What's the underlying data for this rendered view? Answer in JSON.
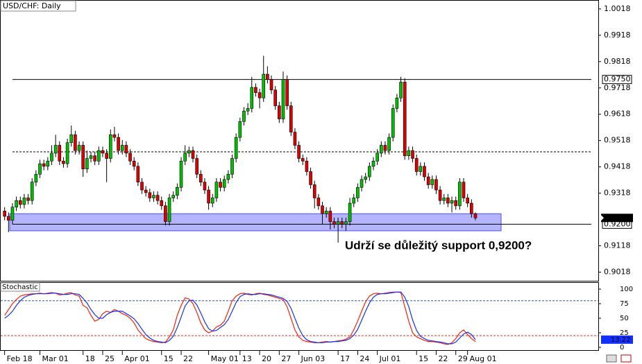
{
  "chart_data": [
    {
      "type": "candlestick",
      "title": "USD/CHF: Daily",
      "annotation": "Udrží se důležitý support 0,9200?",
      "up_color": "#00c000",
      "down_color": "#e00000",
      "ylim": [
        0.8985,
        1.0052
      ],
      "yticks": [
        1.0018,
        0.9918,
        0.9818,
        0.9718,
        0.9618,
        0.9518,
        0.9418,
        0.9318,
        0.9118,
        0.9018
      ],
      "xlim": [
        -1,
        151
      ],
      "xticks": [
        {
          "value": 0,
          "label": "Feb 18"
        },
        {
          "value": 9,
          "label": "Mar 01"
        },
        {
          "value": 20,
          "label": "18"
        },
        {
          "value": 25,
          "label": "25"
        },
        {
          "value": 30,
          "label": "Apr 01"
        },
        {
          "value": 40,
          "label": "15"
        },
        {
          "value": 45,
          "label": "22"
        },
        {
          "value": 52,
          "label": "May 01"
        },
        {
          "value": 60,
          "label": "13"
        },
        {
          "value": 65,
          "label": "20"
        },
        {
          "value": 70,
          "label": "27"
        },
        {
          "value": 75,
          "label": "Jun 03"
        },
        {
          "value": 85,
          "label": "17"
        },
        {
          "value": 90,
          "label": "24"
        },
        {
          "value": 95,
          "label": "Jul 01"
        },
        {
          "value": 105,
          "label": "15"
        },
        {
          "value": 110,
          "label": "22"
        },
        {
          "value": 115,
          "label": "29"
        },
        {
          "value": 118,
          "label": "Aug 01"
        }
      ],
      "levels": [
        {
          "value": 0.975,
          "label": "0.9750",
          "dashed": false
        },
        {
          "value": 0.9475,
          "dashed": true
        },
        {
          "value": 0.92,
          "label": "0.9200",
          "dashed": false
        }
      ],
      "support_zone": [
        0.9175,
        0.924
      ],
      "zone_color": "#b4b4ff",
      "open": [
        0.925,
        0.923,
        0.9215,
        0.9265,
        0.929,
        0.9275,
        0.93,
        0.929,
        0.936,
        0.939,
        0.943,
        0.942,
        0.944,
        0.947,
        0.95,
        0.944,
        0.943,
        0.951,
        0.954,
        0.948,
        0.95,
        0.941,
        0.945,
        0.946,
        0.944,
        0.948,
        0.947,
        0.945,
        0.954,
        0.953,
        0.948,
        0.95,
        0.947,
        0.944,
        0.942,
        0.936,
        0.933,
        0.932,
        0.93,
        0.931,
        0.929,
        0.927,
        0.921,
        0.93,
        0.931,
        0.934,
        0.944,
        0.947,
        0.948,
        0.945,
        0.939,
        0.936,
        0.933,
        0.928,
        0.93,
        0.936,
        0.934,
        0.937,
        0.939,
        0.945,
        0.953,
        0.959,
        0.963,
        0.964,
        0.972,
        0.97,
        0.968,
        0.977,
        0.975,
        0.971,
        0.965,
        0.96,
        0.975,
        0.965,
        0.955,
        0.95,
        0.945,
        0.944,
        0.94,
        0.935,
        0.93,
        0.927,
        0.924,
        0.925,
        0.921,
        0.92,
        0.921,
        0.92,
        0.921,
        0.928,
        0.93,
        0.934,
        0.937,
        0.938,
        0.942,
        0.944,
        0.947,
        0.95,
        0.948,
        0.953,
        0.964,
        0.968,
        0.974,
        0.946,
        0.948,
        0.945,
        0.94,
        0.942,
        0.938,
        0.935,
        0.937,
        0.933,
        0.929,
        0.93,
        0.928,
        0.929,
        0.927,
        0.936,
        0.93,
        0.928,
        0.924
      ],
      "high": [
        0.9265,
        0.9245,
        0.928,
        0.9305,
        0.9305,
        0.9315,
        0.9315,
        0.9375,
        0.9405,
        0.9445,
        0.9445,
        0.9455,
        0.95,
        0.954,
        0.9515,
        0.9455,
        0.9525,
        0.9575,
        0.9555,
        0.9515,
        0.9515,
        0.948,
        0.9475,
        0.9475,
        0.9495,
        0.9495,
        0.9485,
        0.956,
        0.957,
        0.9545,
        0.952,
        0.9515,
        0.9485,
        0.9455,
        0.9435,
        0.9375,
        0.9345,
        0.9335,
        0.9325,
        0.9325,
        0.9305,
        0.9285,
        0.9315,
        0.9325,
        0.9355,
        0.9455,
        0.95,
        0.9495,
        0.9495,
        0.9465,
        0.9405,
        0.9375,
        0.9345,
        0.9315,
        0.9375,
        0.9375,
        0.9385,
        0.9405,
        0.9465,
        0.9545,
        0.9605,
        0.9645,
        0.966,
        0.976,
        0.9735,
        0.9715,
        0.984,
        0.98,
        0.9765,
        0.9725,
        0.9665,
        0.978,
        0.9765,
        0.9665,
        0.9565,
        0.9515,
        0.9465,
        0.9455,
        0.9415,
        0.9365,
        0.9315,
        0.9285,
        0.9265,
        0.9265,
        0.9225,
        0.9225,
        0.9225,
        0.9225,
        0.93,
        0.9315,
        0.9355,
        0.9385,
        0.9395,
        0.9435,
        0.9455,
        0.9485,
        0.9515,
        0.9515,
        0.9545,
        0.9655,
        0.9695,
        0.976,
        0.9755,
        0.9495,
        0.9495,
        0.9465,
        0.9435,
        0.9435,
        0.9395,
        0.9385,
        0.9385,
        0.9345,
        0.9315,
        0.9315,
        0.9305,
        0.9305,
        0.9375,
        0.9375,
        0.9315,
        0.9295,
        0.9245
      ],
      "low": [
        0.9215,
        0.917,
        0.92,
        0.925,
        0.926,
        0.926,
        0.9275,
        0.9275,
        0.9345,
        0.9375,
        0.9405,
        0.9405,
        0.9425,
        0.9455,
        0.9425,
        0.9415,
        0.9415,
        0.9495,
        0.9465,
        0.9465,
        0.938,
        0.9395,
        0.9435,
        0.9425,
        0.9425,
        0.9455,
        0.936,
        0.9435,
        0.9515,
        0.9465,
        0.9465,
        0.9455,
        0.9425,
        0.9405,
        0.9345,
        0.9315,
        0.9305,
        0.9285,
        0.9285,
        0.9275,
        0.9255,
        0.9195,
        0.9195,
        0.9285,
        0.9295,
        0.9325,
        0.9425,
        0.9455,
        0.9435,
        0.9375,
        0.9345,
        0.9315,
        0.9255,
        0.9265,
        0.9285,
        0.9325,
        0.9325,
        0.9355,
        0.9375,
        0.9435,
        0.9515,
        0.9575,
        0.9615,
        0.9625,
        0.9685,
        0.964,
        0.9665,
        0.9735,
        0.9695,
        0.9635,
        0.9585,
        0.9585,
        0.9635,
        0.9535,
        0.9485,
        0.9435,
        0.9425,
        0.9385,
        0.9335,
        0.926,
        0.9255,
        0.92,
        0.9225,
        0.918,
        0.9185,
        0.913,
        0.9185,
        0.9175,
        0.9195,
        0.9265,
        0.9285,
        0.9325,
        0.9355,
        0.9365,
        0.9405,
        0.9425,
        0.9455,
        0.9465,
        0.9465,
        0.9515,
        0.9625,
        0.9665,
        0.9445,
        0.9445,
        0.9435,
        0.9385,
        0.9385,
        0.9365,
        0.9335,
        0.9335,
        0.9315,
        0.9275,
        0.9275,
        0.9265,
        0.9245,
        0.9255,
        0.9255,
        0.9285,
        0.9265,
        0.9225,
        0.9215
      ],
      "close": [
        0.923,
        0.9215,
        0.9265,
        0.929,
        0.9275,
        0.93,
        0.929,
        0.936,
        0.939,
        0.943,
        0.942,
        0.944,
        0.947,
        0.95,
        0.944,
        0.943,
        0.951,
        0.954,
        0.948,
        0.95,
        0.941,
        0.945,
        0.946,
        0.944,
        0.948,
        0.947,
        0.945,
        0.954,
        0.953,
        0.948,
        0.95,
        0.947,
        0.944,
        0.942,
        0.936,
        0.933,
        0.932,
        0.93,
        0.931,
        0.929,
        0.927,
        0.921,
        0.93,
        0.931,
        0.934,
        0.944,
        0.947,
        0.948,
        0.945,
        0.939,
        0.936,
        0.933,
        0.928,
        0.93,
        0.936,
        0.934,
        0.937,
        0.939,
        0.945,
        0.953,
        0.959,
        0.963,
        0.964,
        0.972,
        0.97,
        0.968,
        0.977,
        0.975,
        0.971,
        0.965,
        0.96,
        0.975,
        0.965,
        0.955,
        0.95,
        0.945,
        0.944,
        0.94,
        0.935,
        0.93,
        0.927,
        0.924,
        0.925,
        0.921,
        0.92,
        0.921,
        0.92,
        0.921,
        0.928,
        0.93,
        0.934,
        0.937,
        0.938,
        0.942,
        0.944,
        0.947,
        0.95,
        0.948,
        0.953,
        0.964,
        0.968,
        0.974,
        0.946,
        0.948,
        0.945,
        0.94,
        0.942,
        0.938,
        0.935,
        0.937,
        0.933,
        0.929,
        0.93,
        0.928,
        0.929,
        0.927,
        0.936,
        0.93,
        0.928,
        0.924,
        0.9224
      ]
    },
    {
      "type": "line",
      "title": "Stochastic",
      "ylim": [
        -4.8,
        111.9
      ],
      "yticks": [
        100,
        75,
        50,
        25,
        0
      ],
      "levels": [
        {
          "value": 80,
          "color": "#3050d0"
        },
        {
          "value": 20,
          "color": "#e03020"
        }
      ],
      "series": [
        {
          "color": "#ff2000",
          "values": [
            55,
            65,
            75,
            82,
            88,
            90,
            91,
            92,
            92,
            93,
            92,
            93,
            94,
            93,
            90,
            91,
            93,
            94,
            90,
            88,
            72,
            68,
            55,
            45,
            48,
            58,
            62,
            60,
            65,
            62,
            58,
            55,
            50,
            42,
            30,
            22,
            15,
            12,
            10,
            9,
            8,
            9,
            18,
            30,
            55,
            72,
            85,
            83,
            75,
            60,
            42,
            30,
            25,
            28,
            35,
            38,
            45,
            62,
            80,
            88,
            92,
            93,
            91,
            90,
            92,
            93,
            91,
            90,
            88,
            86,
            84,
            82,
            70,
            50,
            30,
            18,
            12,
            10,
            9,
            8,
            8,
            9,
            10,
            9,
            10,
            11,
            12,
            14,
            18,
            30,
            45,
            62,
            78,
            88,
            92,
            93,
            92,
            93,
            94,
            95,
            95,
            94,
            70,
            45,
            25,
            18,
            15,
            12,
            10,
            10,
            9,
            8,
            6,
            5,
            8,
            15,
            25,
            30,
            22,
            15,
            10
          ]
        },
        {
          "color": "#1030ff",
          "values": [
            50,
            55,
            62,
            72,
            80,
            86,
            89,
            91,
            92,
            92,
            92,
            92,
            93,
            93,
            92,
            91,
            91,
            92,
            92,
            91,
            84,
            76,
            65,
            56,
            50,
            50,
            56,
            60,
            62,
            62,
            62,
            58,
            54,
            49,
            41,
            31,
            22,
            16,
            12,
            10,
            9,
            8,
            12,
            19,
            34,
            52,
            71,
            80,
            81,
            73,
            59,
            44,
            32,
            28,
            29,
            34,
            39,
            48,
            62,
            77,
            87,
            91,
            92,
            91,
            91,
            92,
            92,
            91,
            90,
            88,
            86,
            84,
            79,
            67,
            50,
            33,
            20,
            13,
            10,
            9,
            8,
            8,
            9,
            9,
            10,
            10,
            11,
            12,
            15,
            21,
            31,
            46,
            62,
            76,
            86,
            91,
            92,
            92,
            93,
            94,
            95,
            95,
            86,
            70,
            47,
            29,
            19,
            15,
            12,
            11,
            10,
            9,
            8,
            6,
            6,
            9,
            16,
            23,
            26,
            22,
            13.22
          ]
        }
      ]
    }
  ]
}
